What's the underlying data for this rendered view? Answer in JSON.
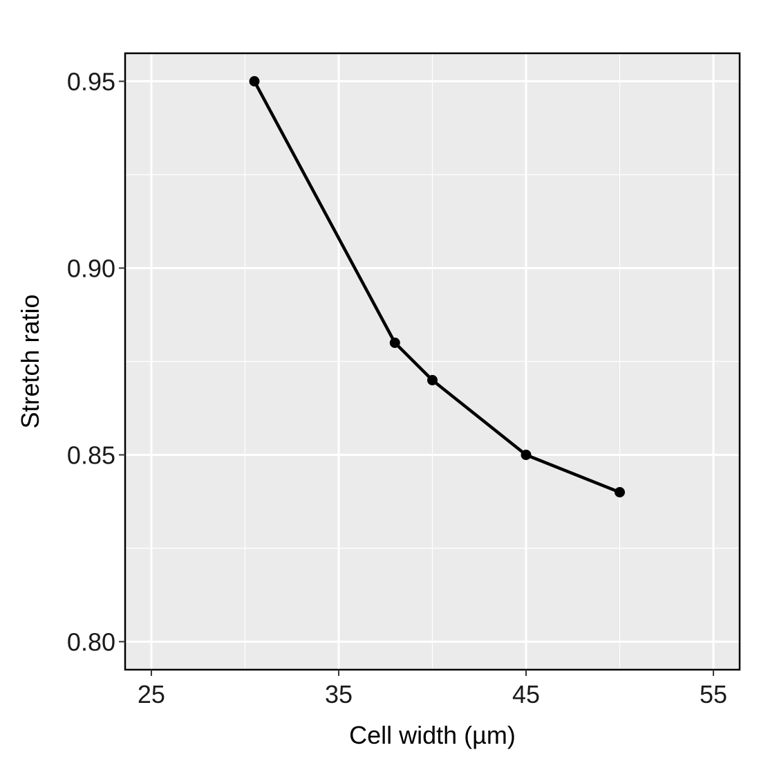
{
  "chart_data": {
    "type": "line",
    "title": "",
    "xlabel": "Cell width (µm)",
    "ylabel": "Stretch ratio",
    "x": [
      30.5,
      38,
      40,
      45,
      50
    ],
    "series": [
      {
        "values": [
          0.95,
          0.88,
          0.87,
          0.85,
          0.84
        ]
      }
    ],
    "xlim": [
      23.6,
      56.4
    ],
    "ylim": [
      0.7925,
      0.9575
    ],
    "xticks": [
      25,
      35,
      45,
      55
    ],
    "xtick_labels": [
      "25",
      "35",
      "45",
      "55"
    ],
    "yticks": [
      0.8,
      0.85,
      0.9,
      0.95
    ],
    "ytick_labels": [
      "0.80",
      "0.85",
      "0.90",
      "0.95"
    ],
    "grid": true,
    "legend": "none",
    "colors": {
      "panel": "#ebebeb",
      "grid": "#ffffff",
      "line": "#000000",
      "border": "#000000"
    }
  }
}
